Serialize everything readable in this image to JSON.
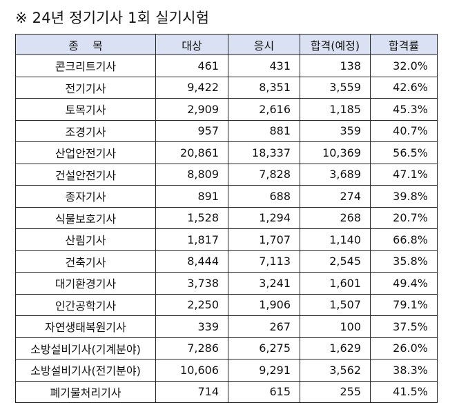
{
  "title": "※ 24년 정기기사 1회 실기시험",
  "table": {
    "headers": [
      "종    목",
      "대상",
      "응시",
      "합격(예정)",
      "합격률"
    ],
    "rows": [
      {
        "name": "콘크리트기사",
        "target": "461",
        "applied": "431",
        "passed": "138",
        "rate": "32.0%"
      },
      {
        "name": "전기기사",
        "target": "9,422",
        "applied": "8,351",
        "passed": "3,559",
        "rate": "42.6%"
      },
      {
        "name": "토목기사",
        "target": "2,909",
        "applied": "2,616",
        "passed": "1,185",
        "rate": "45.3%"
      },
      {
        "name": "조경기사",
        "target": "957",
        "applied": "881",
        "passed": "359",
        "rate": "40.7%"
      },
      {
        "name": "산업안전기사",
        "target": "20,861",
        "applied": "18,337",
        "passed": "10,369",
        "rate": "56.5%"
      },
      {
        "name": "건설안전기사",
        "target": "8,809",
        "applied": "7,828",
        "passed": "3,689",
        "rate": "47.1%"
      },
      {
        "name": "종자기사",
        "target": "891",
        "applied": "688",
        "passed": "274",
        "rate": "39.8%"
      },
      {
        "name": "식물보호기사",
        "target": "1,528",
        "applied": "1,294",
        "passed": "268",
        "rate": "20.7%"
      },
      {
        "name": "산림기사",
        "target": "1,817",
        "applied": "1,707",
        "passed": "1,140",
        "rate": "66.8%"
      },
      {
        "name": "건축기사",
        "target": "8,444",
        "applied": "7,113",
        "passed": "2,545",
        "rate": "35.8%"
      },
      {
        "name": "대기환경기사",
        "target": "3,738",
        "applied": "3,241",
        "passed": "1,601",
        "rate": "49.4%"
      },
      {
        "name": "인간공학기사",
        "target": "2,250",
        "applied": "1,906",
        "passed": "1,507",
        "rate": "79.1%"
      },
      {
        "name": "자연생태복원기사",
        "target": "339",
        "applied": "267",
        "passed": "100",
        "rate": "37.5%"
      },
      {
        "name": "소방설비기사(기계분야)",
        "target": "7,286",
        "applied": "6,275",
        "passed": "1,629",
        "rate": "26.0%"
      },
      {
        "name": "소방설비기사(전기분야)",
        "target": "10,606",
        "applied": "9,291",
        "passed": "3,562",
        "rate": "38.3%"
      },
      {
        "name": "폐기물처리기사",
        "target": "714",
        "applied": "615",
        "passed": "255",
        "rate": "41.5%"
      }
    ]
  },
  "colors": {
    "header_background": "#d9e1f2",
    "border": "#222222",
    "text": "#111111"
  }
}
